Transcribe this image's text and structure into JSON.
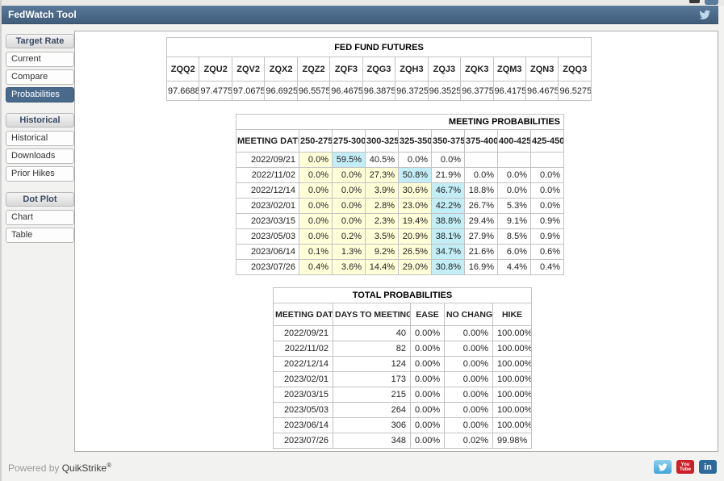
{
  "header": {
    "title": "FedWatch Tool"
  },
  "sidebar": {
    "sections": [
      {
        "label": "Target Rate",
        "items": [
          {
            "label": "Current",
            "selected": false
          },
          {
            "label": "Compare",
            "selected": false
          },
          {
            "label": "Probabilities",
            "selected": true
          }
        ]
      },
      {
        "label": "Historical",
        "items": [
          {
            "label": "Historical",
            "selected": false
          },
          {
            "label": "Downloads",
            "selected": false
          },
          {
            "label": "Prior Hikes",
            "selected": false
          }
        ]
      },
      {
        "label": "Dot Plot",
        "items": [
          {
            "label": "Chart",
            "selected": false
          },
          {
            "label": "Table",
            "selected": false
          }
        ]
      }
    ]
  },
  "futures": {
    "title": "FED FUND FUTURES",
    "symbols": [
      "ZQQ2",
      "ZQU2",
      "ZQV2",
      "ZQX2",
      "ZQZ2",
      "ZQF3",
      "ZQG3",
      "ZQH3",
      "ZQJ3",
      "ZQK3",
      "ZQM3",
      "ZQN3",
      "ZQQ3"
    ],
    "prices": [
      "97.6688",
      "97.4775",
      "97.0675",
      "96.6925",
      "96.5575",
      "96.4675",
      "96.3875",
      "96.3725",
      "96.3525",
      "96.3775",
      "96.4175",
      "96.4675",
      "96.5275"
    ]
  },
  "meeting_probabilities": {
    "title": "MEETING PROBABILITIES",
    "columns": [
      "MEETING DATE",
      "250-275",
      "275-300",
      "300-325",
      "325-350",
      "350-375",
      "375-400",
      "400-425",
      "425-450"
    ],
    "rows": [
      {
        "date": "2022/09/21",
        "values": [
          "0.0%",
          "59.5%",
          "40.5%",
          "0.0%",
          "0.0%",
          "",
          "",
          ""
        ],
        "max_index": 1
      },
      {
        "date": "2022/11/02",
        "values": [
          "0.0%",
          "0.0%",
          "27.3%",
          "50.8%",
          "21.9%",
          "0.0%",
          "0.0%",
          "0.0%"
        ],
        "max_index": 3
      },
      {
        "date": "2022/12/14",
        "values": [
          "0.0%",
          "0.0%",
          "3.9%",
          "30.6%",
          "46.7%",
          "18.8%",
          "0.0%",
          "0.0%"
        ],
        "max_index": 4
      },
      {
        "date": "2023/02/01",
        "values": [
          "0.0%",
          "0.0%",
          "2.8%",
          "23.0%",
          "42.2%",
          "26.7%",
          "5.3%",
          "0.0%"
        ],
        "max_index": 4
      },
      {
        "date": "2023/03/15",
        "values": [
          "0.0%",
          "0.0%",
          "2.3%",
          "19.4%",
          "38.8%",
          "29.4%",
          "9.1%",
          "0.9%"
        ],
        "max_index": 4
      },
      {
        "date": "2023/05/03",
        "values": [
          "0.0%",
          "0.2%",
          "3.5%",
          "20.9%",
          "38.1%",
          "27.9%",
          "8.5%",
          "0.9%"
        ],
        "max_index": 4
      },
      {
        "date": "2023/06/14",
        "values": [
          "0.1%",
          "1.3%",
          "9.2%",
          "26.5%",
          "34.7%",
          "21.6%",
          "6.0%",
          "0.6%"
        ],
        "max_index": 4
      },
      {
        "date": "2023/07/26",
        "values": [
          "0.4%",
          "3.6%",
          "14.4%",
          "29.0%",
          "30.8%",
          "16.9%",
          "4.4%",
          "0.4%"
        ],
        "max_index": 4
      }
    ],
    "colors": {
      "below_max_bg": "#ffffd8",
      "max_bg": "#c3eef7"
    }
  },
  "total_probabilities": {
    "title": "TOTAL PROBABILITIES",
    "columns": [
      "MEETING DATE",
      "DAYS TO MEETING",
      "EASE",
      "NO CHANGE",
      "HIKE"
    ],
    "rows": [
      [
        "2022/09/21",
        "40",
        "0.00%",
        "0.00%",
        "100.00%"
      ],
      [
        "2022/11/02",
        "82",
        "0.00%",
        "0.00%",
        "100.00%"
      ],
      [
        "2022/12/14",
        "124",
        "0.00%",
        "0.00%",
        "100.00%"
      ],
      [
        "2023/02/01",
        "173",
        "0.00%",
        "0.00%",
        "100.00%"
      ],
      [
        "2023/03/15",
        "215",
        "0.00%",
        "0.00%",
        "100.00%"
      ],
      [
        "2023/05/03",
        "264",
        "0.00%",
        "0.00%",
        "100.00%"
      ],
      [
        "2023/06/14",
        "306",
        "0.00%",
        "0.00%",
        "100.00%"
      ],
      [
        "2023/07/26",
        "348",
        "0.00%",
        "0.02%",
        "99.98%"
      ]
    ]
  },
  "footer": {
    "powered_by": "Powered by",
    "brand": "QuikStrike",
    "reg": "®",
    "youtube_line1": "You",
    "youtube_line2": "Tube",
    "linkedin_glyph": "in"
  },
  "colors": {
    "accent_bar": "#4a6a8c",
    "header_text": "#ffffff"
  }
}
